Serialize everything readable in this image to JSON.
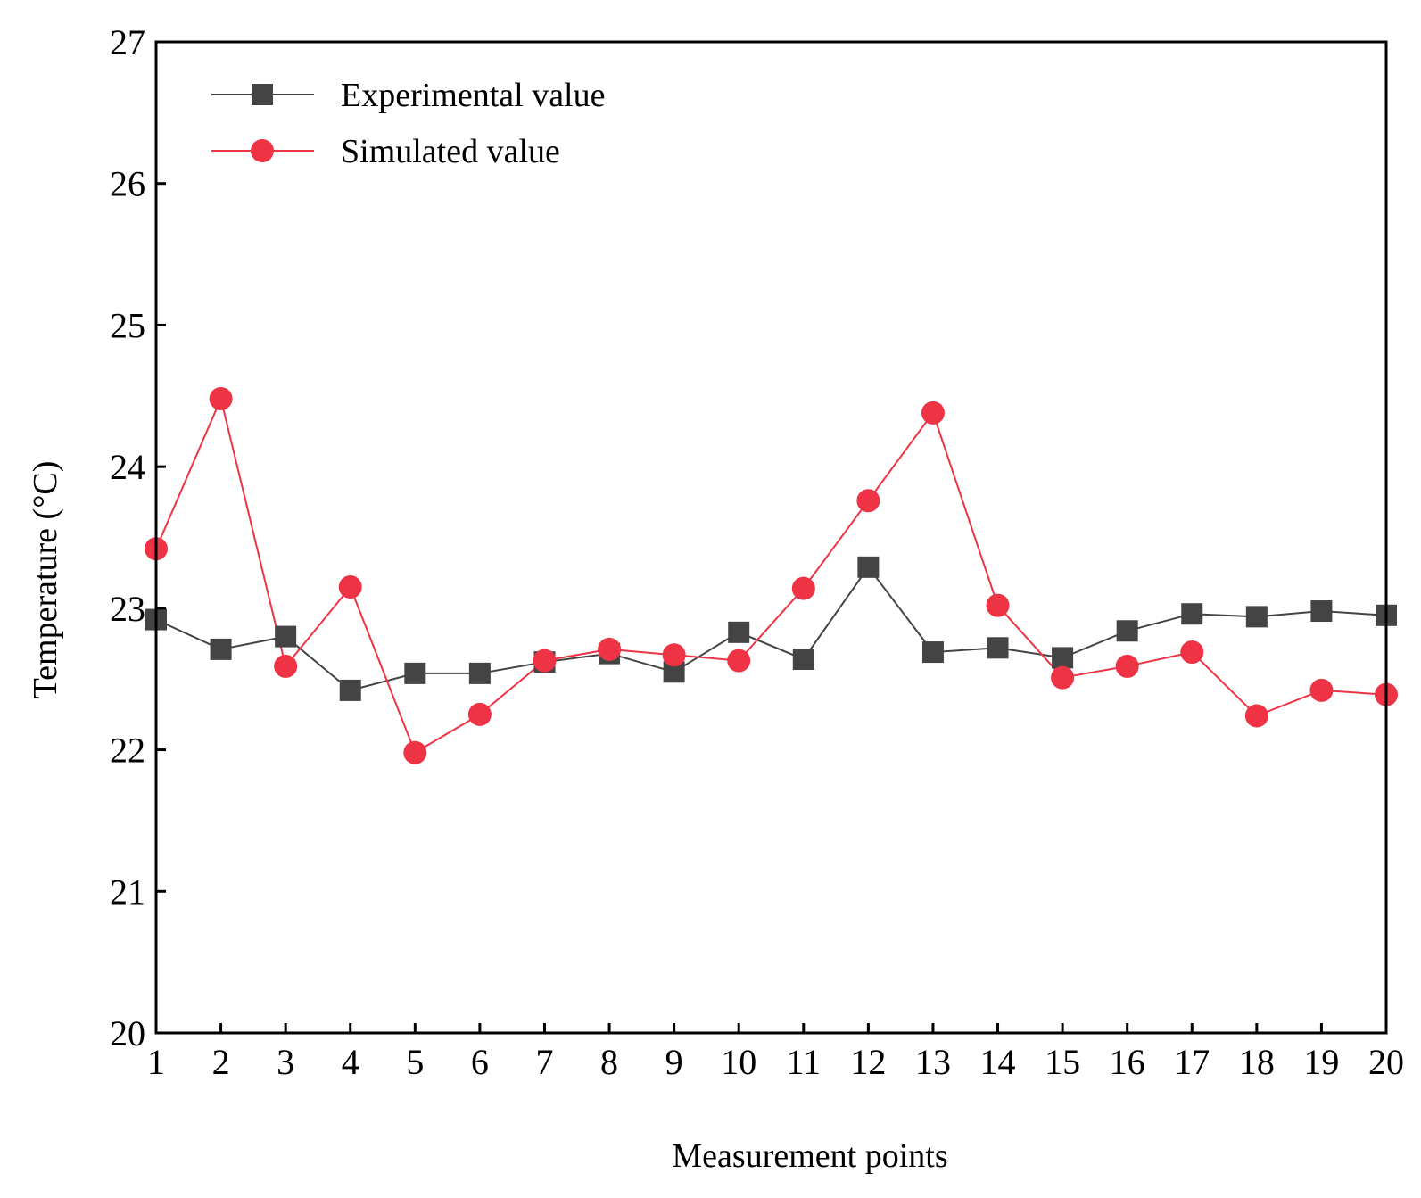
{
  "chart_data": {
    "type": "line",
    "title": "",
    "xlabel": "Measurement points",
    "ylabel": "Temperature (°C)",
    "x": [
      1,
      2,
      3,
      4,
      5,
      6,
      7,
      8,
      9,
      10,
      11,
      12,
      13,
      14,
      15,
      16,
      17,
      18,
      19,
      20
    ],
    "xlim": [
      1,
      20
    ],
    "ylim": [
      20,
      27
    ],
    "yticks": [
      20,
      21,
      22,
      23,
      24,
      25,
      26,
      27
    ],
    "grid": false,
    "legend_position": "top-left",
    "series": [
      {
        "name": "Experimental value",
        "color": "#444444",
        "marker": "square",
        "values": [
          22.92,
          22.71,
          22.8,
          22.42,
          22.54,
          22.54,
          22.62,
          22.68,
          22.55,
          22.83,
          22.64,
          23.29,
          22.69,
          22.72,
          22.65,
          22.84,
          22.96,
          22.94,
          22.98,
          22.95
        ]
      },
      {
        "name": "Simulated value",
        "color": "#ee3344",
        "marker": "circle",
        "values": [
          23.42,
          24.48,
          22.59,
          23.15,
          21.98,
          22.25,
          22.63,
          22.71,
          22.67,
          22.63,
          23.14,
          23.76,
          24.38,
          23.02,
          22.51,
          22.59,
          22.69,
          22.24,
          22.42,
          22.39
        ]
      }
    ]
  }
}
